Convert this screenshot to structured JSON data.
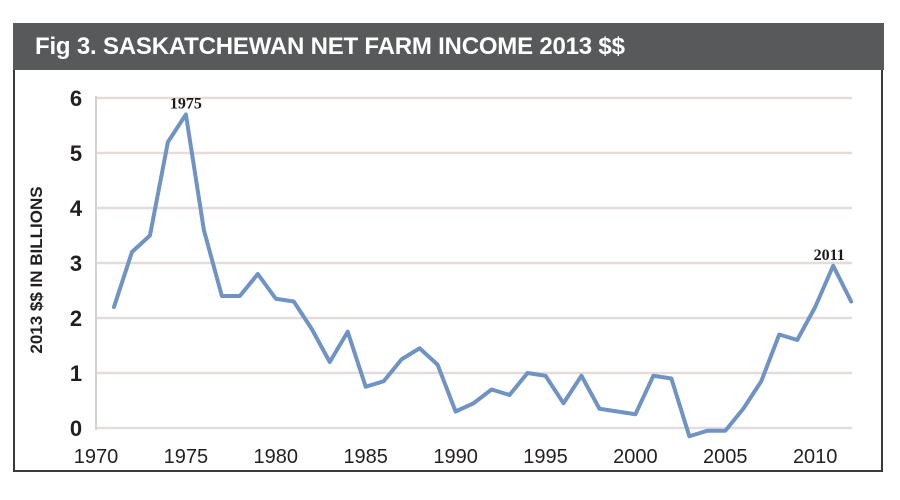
{
  "figure": {
    "title": "Fig 3.  SASKATCHEWAN NET FARM INCOME 2013 $$",
    "header_bg": "#58595b",
    "line_color": "#6f93c4"
  },
  "chart_data": {
    "type": "line",
    "title": "Fig 3. SASKATCHEWAN NET FARM INCOME 2013 $$",
    "xlabel": "",
    "ylabel": "2013 $$ IN BILLIONS",
    "xlim": [
      1970,
      2012
    ],
    "ylim": [
      0,
      6
    ],
    "x_ticks": [
      "1970",
      "1975",
      "1980",
      "1985",
      "1990",
      "1995",
      "2000",
      "2005",
      "2010"
    ],
    "y_ticks": [
      "0",
      "1",
      "2",
      "3",
      "4",
      "5",
      "6"
    ],
    "grid": true,
    "legend": null,
    "annotations": [
      {
        "text": "1975",
        "x": 1975,
        "y": 5.7
      },
      {
        "text": "2011",
        "x": 2011,
        "y": 2.95
      }
    ],
    "x": [
      1971,
      1972,
      1973,
      1974,
      1975,
      1976,
      1977,
      1978,
      1979,
      1980,
      1981,
      1982,
      1983,
      1984,
      1985,
      1986,
      1987,
      1988,
      1989,
      1990,
      1991,
      1992,
      1993,
      1994,
      1995,
      1996,
      1997,
      1998,
      1999,
      2000,
      2001,
      2002,
      2003,
      2004,
      2005,
      2006,
      2007,
      2008,
      2009,
      2010,
      2011,
      2012
    ],
    "series": [
      {
        "name": "Saskatchewan net farm income (2013 $ billions)",
        "values": [
          2.2,
          3.2,
          3.5,
          5.2,
          5.7,
          3.6,
          2.4,
          2.4,
          2.8,
          2.35,
          2.3,
          1.8,
          1.2,
          1.75,
          0.75,
          0.85,
          1.25,
          1.45,
          1.15,
          0.3,
          0.45,
          0.7,
          0.6,
          1.0,
          0.95,
          0.45,
          0.95,
          0.35,
          0.3,
          0.25,
          0.95,
          0.9,
          -0.15,
          -0.05,
          -0.05,
          0.35,
          0.85,
          1.7,
          1.6,
          2.2,
          2.95,
          2.3
        ]
      }
    ]
  }
}
